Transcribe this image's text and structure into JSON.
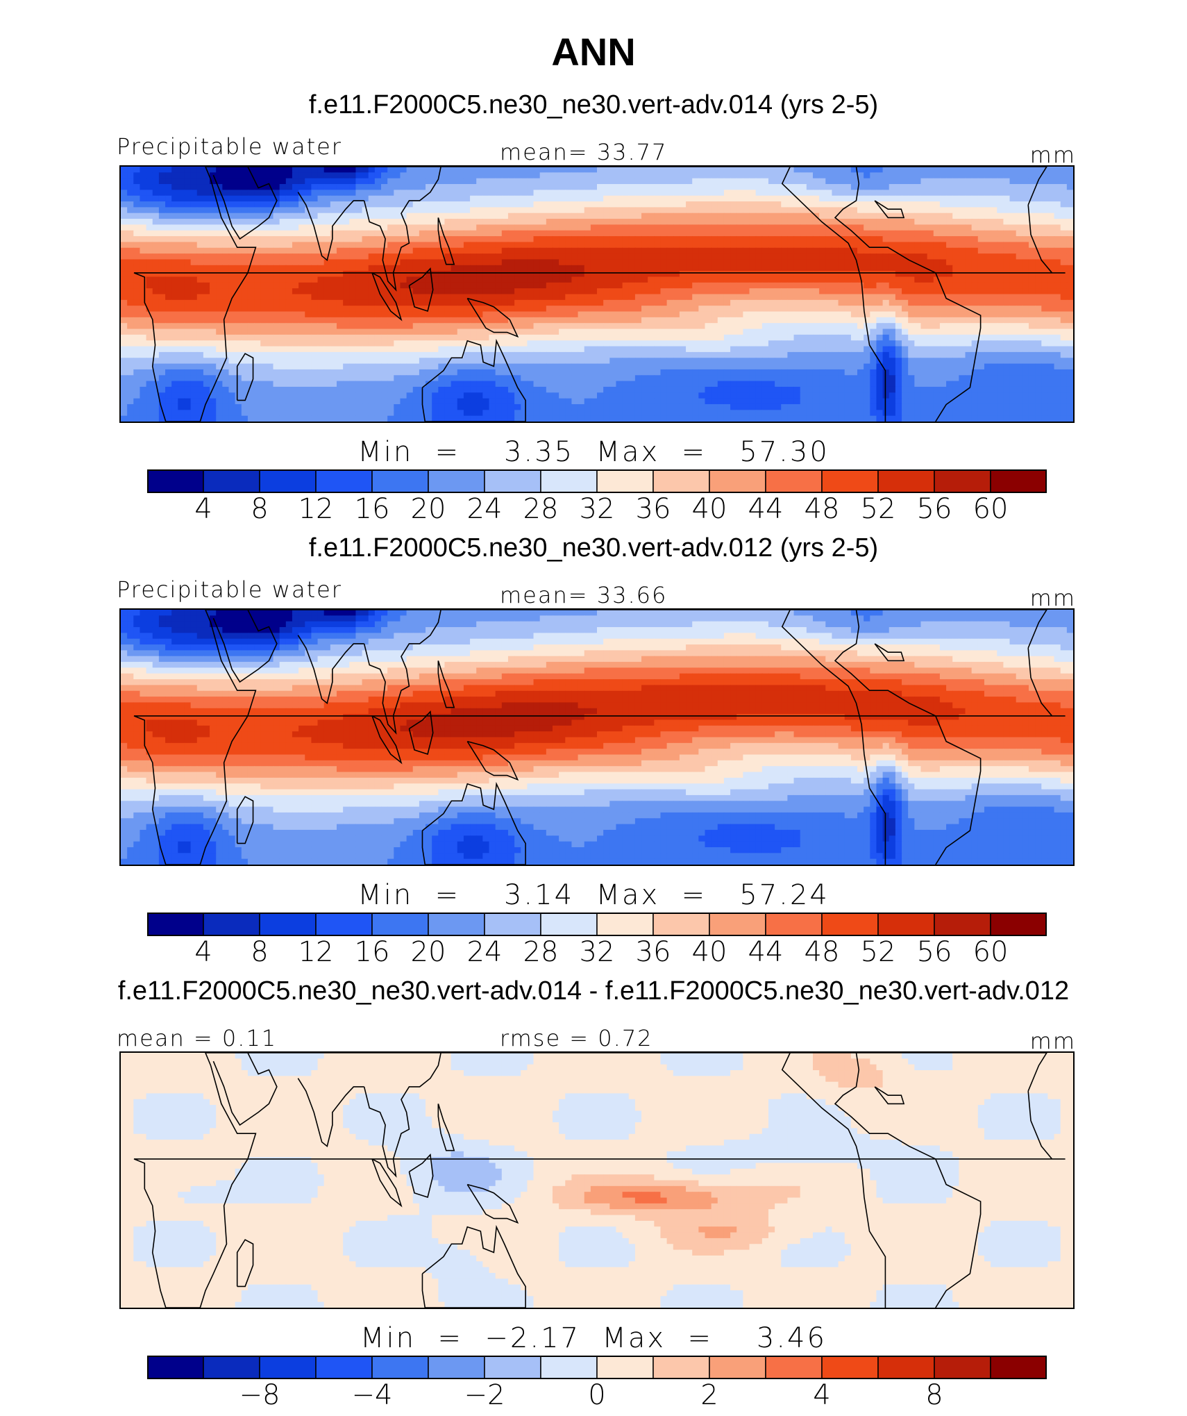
{
  "page": {
    "title": "ANN"
  },
  "panels": [
    {
      "subtitle": "f.e11.F2000C5.ne30_ne30.vert-adv.014 (yrs 2-5)",
      "left_label": "Precipitable water",
      "center_label": "mean=  33.77",
      "right_label": "mm",
      "minmax": "Min  =    3.35  Max  =   57.30",
      "field": "abs"
    },
    {
      "subtitle": "f.e11.F2000C5.ne30_ne30.vert-adv.012 (yrs 2-5)",
      "left_label": "Precipitable water",
      "center_label": "mean=  33.66",
      "right_label": "mm",
      "minmax": "Min  =    3.14  Max  =   57.24",
      "field": "abs"
    },
    {
      "subtitle": "f.e11.F2000C5.ne30_ne30.vert-adv.014 - f.e11.F2000C5.ne30_ne30.vert-adv.012",
      "left_label": "mean =   0.11",
      "center_label": "rmse =   0.72",
      "right_label": "mm",
      "minmax": "Min  =  −2.17  Max  =    3.46",
      "field": "diff"
    }
  ],
  "colorbar_colors": [
    "#00008b",
    "#0a2bbd",
    "#0c3ee0",
    "#1f55f5",
    "#3d76f2",
    "#6c98f2",
    "#a6c0f7",
    "#d8e6fb",
    "#fde8d6",
    "#fcc7ab",
    "#f9a079",
    "#f77046",
    "#ef4a17",
    "#d62f0a",
    "#b61d09",
    "#8b0000"
  ],
  "colorbars": [
    {
      "tick_labels": [
        "4",
        "8",
        "12",
        "16",
        "20",
        "24",
        "28",
        "32",
        "36",
        "40",
        "44",
        "48",
        "52",
        "56",
        "60"
      ]
    },
    {
      "tick_labels": [
        "4",
        "8",
        "12",
        "16",
        "20",
        "24",
        "28",
        "32",
        "36",
        "40",
        "44",
        "48",
        "52",
        "56",
        "60"
      ]
    },
    {
      "tick_labels": [
        "−8",
        "−4",
        "−2",
        "0",
        "2",
        "4",
        "8"
      ]
    }
  ],
  "chart_data": {
    "type": "heatmap",
    "title": "ANN",
    "variable": "Precipitable water",
    "units": "mm",
    "panels": [
      {
        "case": "f.e11.F2000C5.ne30_ne30.vert-adv.014 (yrs 2-5)",
        "mean": 33.77,
        "min": 3.35,
        "max": 57.3,
        "contour_levels": [
          4,
          8,
          12,
          16,
          20,
          24,
          28,
          32,
          36,
          40,
          44,
          48,
          52,
          56,
          60
        ]
      },
      {
        "case": "f.e11.F2000C5.ne30_ne30.vert-adv.012 (yrs 2-5)",
        "mean": 33.66,
        "min": 3.14,
        "max": 57.24,
        "contour_levels": [
          4,
          8,
          12,
          16,
          20,
          24,
          28,
          32,
          36,
          40,
          44,
          48,
          52,
          56,
          60
        ]
      },
      {
        "case": "f.e11.F2000C5.ne30_ne30.vert-adv.014 - f.e11.F2000C5.ne30_ne30.vert-adv.012",
        "mean": 0.11,
        "rmse": 0.72,
        "min": -2.17,
        "max": 3.46,
        "contour_levels": [
          -10,
          -8,
          -6,
          -4,
          -3,
          -2,
          -1,
          0,
          1,
          2,
          3,
          4,
          6,
          8,
          10
        ],
        "labeled_levels": [
          -8,
          -4,
          -2,
          0,
          2,
          4,
          8
        ]
      }
    ]
  }
}
